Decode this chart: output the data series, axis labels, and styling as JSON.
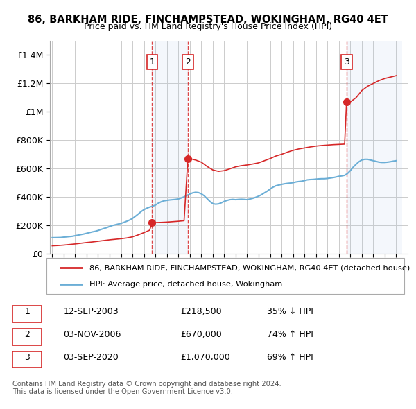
{
  "title1": "86, BARKHAM RIDE, FINCHAMPSTEAD, WOKINGHAM, RG40 4ET",
  "title2": "Price paid vs. HM Land Registry's House Price Index (HPI)",
  "xlabel": "",
  "ylabel": "",
  "ylim": [
    0,
    1500000
  ],
  "xlim_start": 1995,
  "xlim_end": 2026,
  "yticks": [
    0,
    200000,
    400000,
    600000,
    800000,
    1000000,
    1200000,
    1400000
  ],
  "ytick_labels": [
    "£0",
    "£200K",
    "£400K",
    "£600K",
    "£800K",
    "£1M",
    "£1.2M",
    "£1.4M"
  ],
  "xticks": [
    1995,
    1996,
    1997,
    1998,
    1999,
    2000,
    2001,
    2002,
    2003,
    2004,
    2005,
    2006,
    2007,
    2008,
    2009,
    2010,
    2011,
    2012,
    2013,
    2014,
    2015,
    2016,
    2017,
    2018,
    2019,
    2020,
    2021,
    2022,
    2023,
    2024,
    2025
  ],
  "hpi_color": "#6baed6",
  "price_color": "#d62728",
  "sale_marker_color": "#d62728",
  "grid_color": "#cccccc",
  "bg_plot": "#f5f5f5",
  "sale1_date": 2003.7,
  "sale1_price": 218500,
  "sale2_date": 2006.83,
  "sale2_price": 670000,
  "sale3_date": 2020.67,
  "sale3_price": 1070000,
  "legend_label_red": "86, BARKHAM RIDE, FINCHAMPSTEAD, WOKINGHAM, RG40 4ET (detached house)",
  "legend_label_blue": "HPI: Average price, detached house, Wokingham",
  "table_rows": [
    {
      "num": "1",
      "date": "12-SEP-2003",
      "price": "£218,500",
      "hpi": "35% ↓ HPI"
    },
    {
      "num": "2",
      "date": "03-NOV-2006",
      "price": "£670,000",
      "hpi": "74% ↑ HPI"
    },
    {
      "num": "3",
      "date": "03-SEP-2020",
      "price": "£1,070,000",
      "hpi": "69% ↑ HPI"
    }
  ],
  "footnote": "Contains HM Land Registry data © Crown copyright and database right 2024.\nThis data is licensed under the Open Government Licence v3.0.",
  "hpi_data": {
    "years": [
      1995.0,
      1995.25,
      1995.5,
      1995.75,
      1996.0,
      1996.25,
      1996.5,
      1996.75,
      1997.0,
      1997.25,
      1997.5,
      1997.75,
      1998.0,
      1998.25,
      1998.5,
      1998.75,
      1999.0,
      1999.25,
      1999.5,
      1999.75,
      2000.0,
      2000.25,
      2000.5,
      2000.75,
      2001.0,
      2001.25,
      2001.5,
      2001.75,
      2002.0,
      2002.25,
      2002.5,
      2002.75,
      2003.0,
      2003.25,
      2003.5,
      2003.75,
      2004.0,
      2004.25,
      2004.5,
      2004.75,
      2005.0,
      2005.25,
      2005.5,
      2005.75,
      2006.0,
      2006.25,
      2006.5,
      2006.75,
      2007.0,
      2007.25,
      2007.5,
      2007.75,
      2008.0,
      2008.25,
      2008.5,
      2008.75,
      2009.0,
      2009.25,
      2009.5,
      2009.75,
      2010.0,
      2010.25,
      2010.5,
      2010.75,
      2011.0,
      2011.25,
      2011.5,
      2011.75,
      2012.0,
      2012.25,
      2012.5,
      2012.75,
      2013.0,
      2013.25,
      2013.5,
      2013.75,
      2014.0,
      2014.25,
      2014.5,
      2014.75,
      2015.0,
      2015.25,
      2015.5,
      2015.75,
      2016.0,
      2016.25,
      2016.5,
      2016.75,
      2017.0,
      2017.25,
      2017.5,
      2017.75,
      2018.0,
      2018.25,
      2018.5,
      2018.75,
      2019.0,
      2019.25,
      2019.5,
      2019.75,
      2020.0,
      2020.25,
      2020.5,
      2020.75,
      2021.0,
      2021.25,
      2021.5,
      2021.75,
      2022.0,
      2022.25,
      2022.5,
      2022.75,
      2023.0,
      2023.25,
      2023.5,
      2023.75,
      2024.0,
      2024.25,
      2024.5,
      2024.75,
      2025.0
    ],
    "values": [
      112000,
      112500,
      113000,
      113500,
      116000,
      118000,
      120000,
      122000,
      126000,
      130000,
      134000,
      138000,
      143000,
      148000,
      153000,
      157000,
      163000,
      170000,
      177000,
      183000,
      191000,
      198000,
      203000,
      208000,
      213000,
      220000,
      228000,
      237000,
      248000,
      263000,
      279000,
      296000,
      310000,
      320000,
      328000,
      334000,
      342000,
      355000,
      365000,
      372000,
      375000,
      378000,
      380000,
      382000,
      385000,
      392000,
      400000,
      410000,
      420000,
      428000,
      432000,
      430000,
      422000,
      408000,
      388000,
      368000,
      352000,
      348000,
      350000,
      358000,
      368000,
      375000,
      380000,
      382000,
      380000,
      382000,
      383000,
      382000,
      380000,
      385000,
      390000,
      397000,
      405000,
      415000,
      428000,
      440000,
      455000,
      468000,
      478000,
      483000,
      488000,
      492000,
      495000,
      497000,
      500000,
      505000,
      508000,
      510000,
      515000,
      520000,
      522000,
      523000,
      525000,
      527000,
      528000,
      528000,
      530000,
      533000,
      536000,
      540000,
      545000,
      548000,
      552000,
      565000,
      585000,
      610000,
      630000,
      648000,
      660000,
      665000,
      665000,
      660000,
      655000,
      650000,
      645000,
      643000,
      643000,
      645000,
      648000,
      652000,
      655000
    ]
  },
  "price_data": {
    "years": [
      1995.0,
      1995.5,
      1996.0,
      1996.5,
      1997.0,
      1997.5,
      1998.0,
      1998.5,
      1999.0,
      1999.5,
      2000.0,
      2000.5,
      2001.0,
      2001.5,
      2002.0,
      2002.5,
      2003.0,
      2003.5,
      2003.7,
      2004.0,
      2004.5,
      2005.0,
      2005.5,
      2006.0,
      2006.5,
      2006.83,
      2007.0,
      2007.5,
      2008.0,
      2008.5,
      2009.0,
      2009.5,
      2010.0,
      2010.5,
      2011.0,
      2011.5,
      2012.0,
      2012.5,
      2013.0,
      2013.5,
      2014.0,
      2014.5,
      2015.0,
      2015.5,
      2016.0,
      2016.5,
      2017.0,
      2017.5,
      2018.0,
      2018.5,
      2019.0,
      2019.5,
      2020.0,
      2020.5,
      2020.67,
      2021.0,
      2021.5,
      2022.0,
      2022.5,
      2023.0,
      2023.5,
      2024.0,
      2024.5,
      2025.0
    ],
    "values": [
      55000,
      57000,
      60000,
      64000,
      68000,
      73000,
      78000,
      82000,
      87000,
      92000,
      97000,
      101000,
      105000,
      110000,
      118000,
      132000,
      148000,
      165000,
      218500,
      218500,
      220000,
      222000,
      225000,
      228000,
      232000,
      670000,
      670000,
      660000,
      645000,
      615000,
      590000,
      580000,
      585000,
      598000,
      612000,
      620000,
      625000,
      632000,
      640000,
      655000,
      670000,
      688000,
      700000,
      715000,
      728000,
      738000,
      745000,
      752000,
      758000,
      762000,
      765000,
      768000,
      770000,
      772000,
      1070000,
      1070000,
      1100000,
      1150000,
      1180000,
      1200000,
      1220000,
      1235000,
      1245000,
      1255000
    ]
  }
}
